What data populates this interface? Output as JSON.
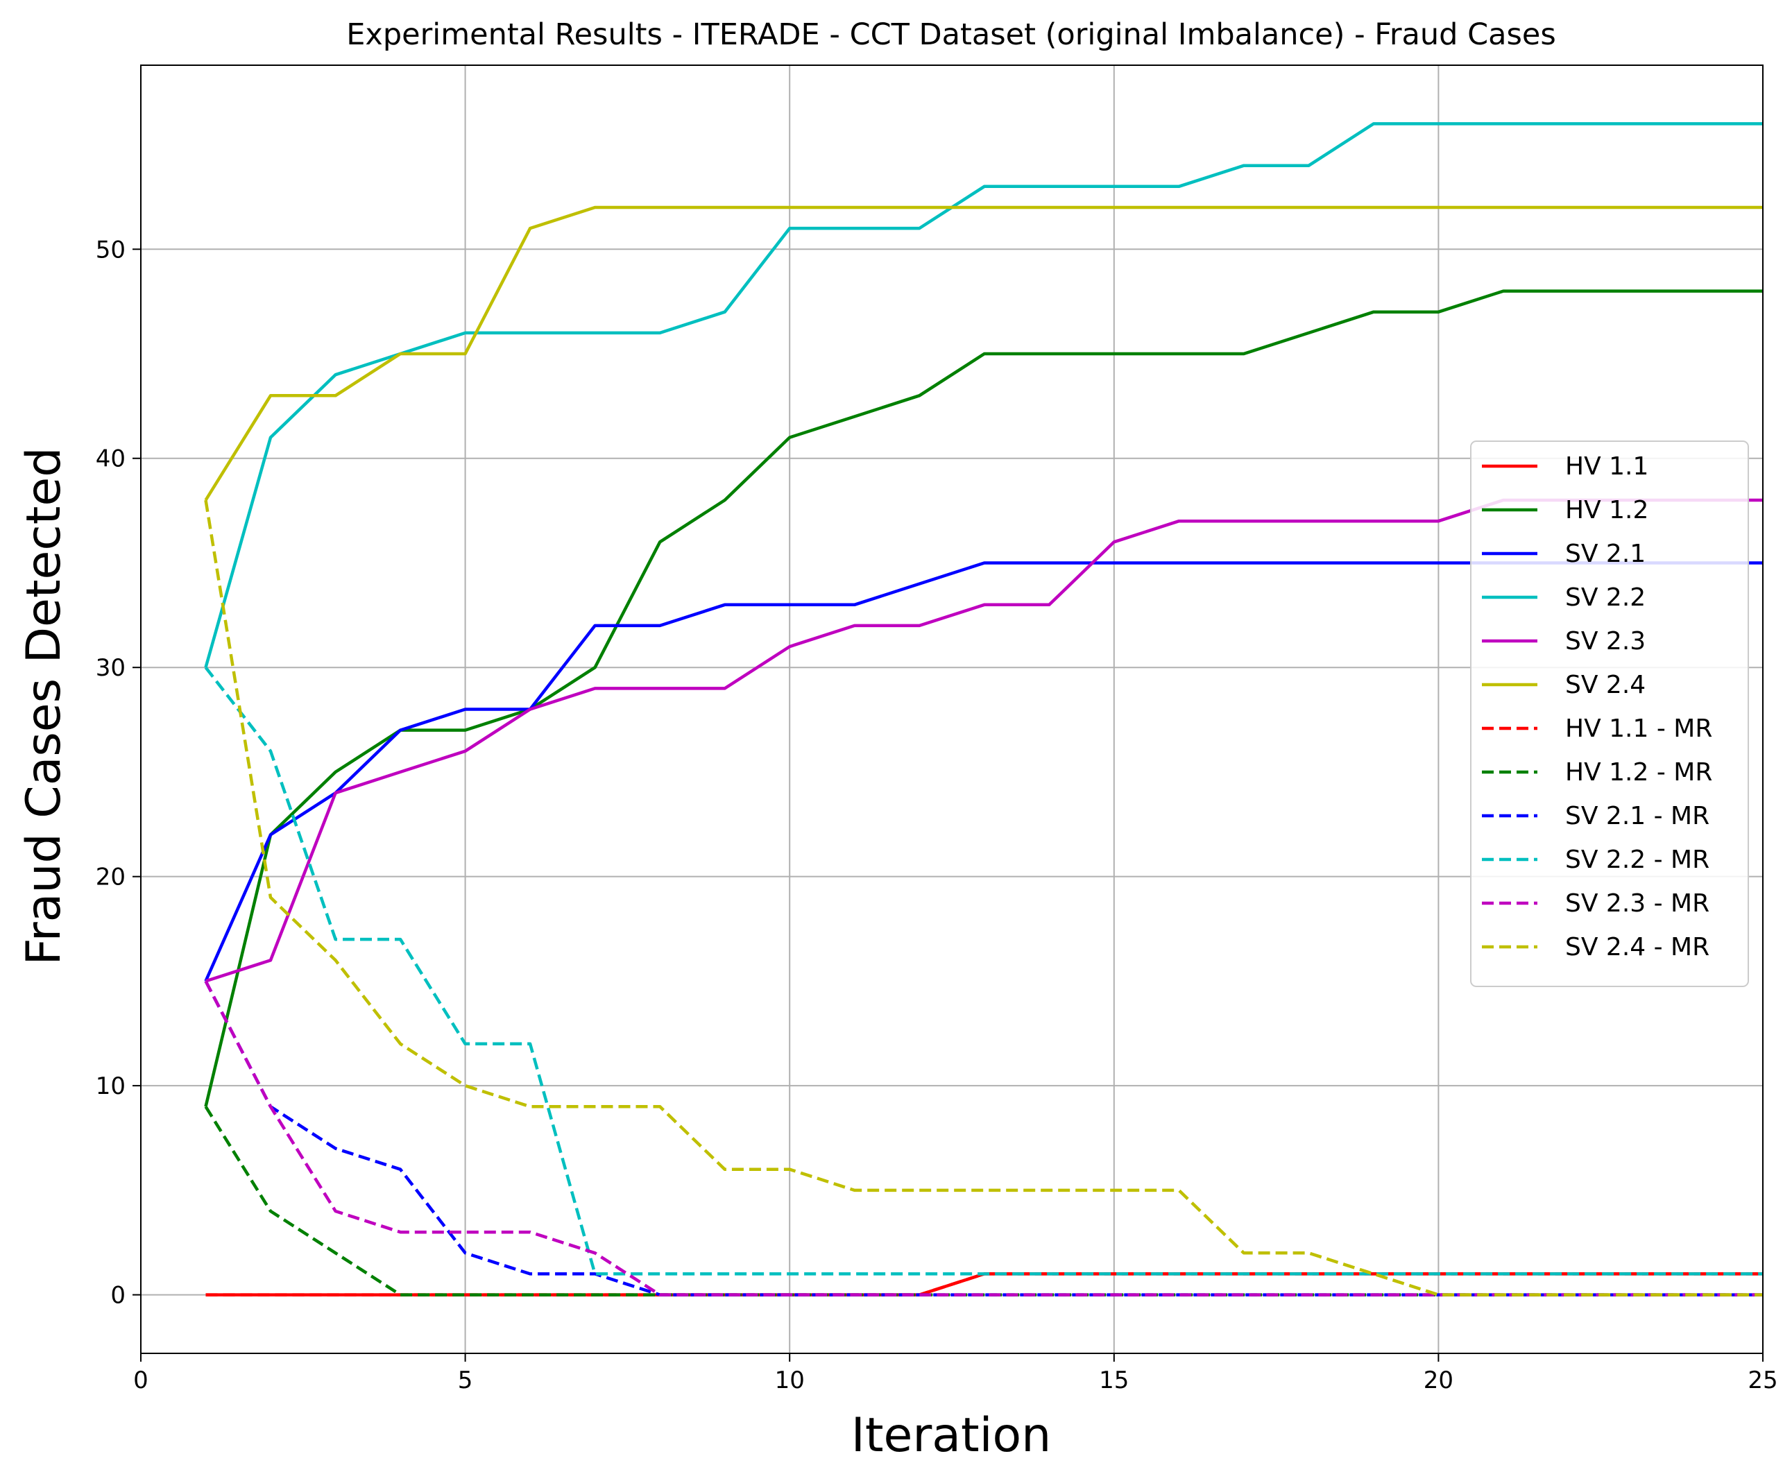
{
  "chart_data": {
    "type": "line",
    "title": "Experimental Results - ITERADE - CCT Dataset (original Imbalance) - Fraud Cases",
    "xlabel": "Iteration",
    "ylabel": "Fraud Cases Detected",
    "xlim": [
      0,
      25
    ],
    "ylim": [
      -2.8,
      58.8
    ],
    "xticks": [
      0,
      5,
      10,
      15,
      20,
      25
    ],
    "yticks": [
      0,
      10,
      20,
      30,
      40,
      50
    ],
    "grid": true,
    "legend_position": "center-right",
    "x": [
      1,
      2,
      3,
      4,
      5,
      6,
      7,
      8,
      9,
      10,
      11,
      12,
      13,
      14,
      15,
      16,
      17,
      18,
      19,
      20,
      21,
      22,
      23,
      24,
      25
    ],
    "series": [
      {
        "name": "HV 1.1",
        "color": "#ff0000",
        "dash": "solid",
        "values": [
          0,
          0,
          0,
          0,
          0,
          0,
          0,
          0,
          0,
          0,
          0,
          0,
          1,
          1,
          1,
          1,
          1,
          1,
          1,
          1,
          1,
          1,
          1,
          1,
          1
        ]
      },
      {
        "name": "HV 1.2",
        "color": "#008000",
        "dash": "solid",
        "values": [
          9,
          22,
          25,
          27,
          27,
          28,
          30,
          36,
          38,
          41,
          42,
          43,
          45,
          45,
          45,
          45,
          45,
          46,
          47,
          47,
          48,
          48,
          48,
          48,
          48
        ]
      },
      {
        "name": "SV 2.1",
        "color": "#0000ff",
        "dash": "solid",
        "values": [
          15,
          22,
          24,
          27,
          28,
          28,
          32,
          32,
          33,
          33,
          33,
          34,
          35,
          35,
          35,
          35,
          35,
          35,
          35,
          35,
          35,
          35,
          35,
          35,
          35
        ]
      },
      {
        "name": "SV 2.2",
        "color": "#00bfbf",
        "dash": "solid",
        "values": [
          30,
          41,
          44,
          45,
          46,
          46,
          46,
          46,
          47,
          51,
          51,
          51,
          53,
          53,
          53,
          53,
          54,
          54,
          56,
          56,
          56,
          56,
          56,
          56,
          56
        ]
      },
      {
        "name": "SV 2.3",
        "color": "#bf00bf",
        "dash": "solid",
        "values": [
          15,
          16,
          24,
          25,
          26,
          28,
          29,
          29,
          29,
          31,
          32,
          32,
          33,
          33,
          36,
          37,
          37,
          37,
          37,
          37,
          38,
          38,
          38,
          38,
          38
        ]
      },
      {
        "name": "SV 2.4",
        "color": "#bfbf00",
        "dash": "solid",
        "values": [
          38,
          43,
          43,
          45,
          45,
          51,
          52,
          52,
          52,
          52,
          52,
          52,
          52,
          52,
          52,
          52,
          52,
          52,
          52,
          52,
          52,
          52,
          52,
          52,
          52
        ]
      },
      {
        "name": "HV 1.1 - MR",
        "color": "#ff0000",
        "dash": "dashed",
        "values": [
          0,
          0,
          0,
          0,
          0,
          0,
          0,
          0,
          0,
          0,
          0,
          0,
          1,
          1,
          1,
          1,
          1,
          1,
          1,
          1,
          1,
          1,
          1,
          1,
          1
        ]
      },
      {
        "name": "HV 1.2 - MR",
        "color": "#008000",
        "dash": "dashed",
        "values": [
          9,
          4,
          2,
          0,
          0,
          0,
          0,
          0,
          0,
          0,
          0,
          0,
          0,
          0,
          0,
          0,
          0,
          0,
          0,
          0,
          0,
          0,
          0,
          0,
          0
        ]
      },
      {
        "name": "SV 2.1 - MR",
        "color": "#0000ff",
        "dash": "dashed",
        "values": [
          15,
          9,
          7,
          6,
          2,
          1,
          1,
          0,
          0,
          0,
          0,
          0,
          0,
          0,
          0,
          0,
          0,
          0,
          0,
          0,
          0,
          0,
          0,
          0,
          0
        ]
      },
      {
        "name": "SV 2.2 - MR",
        "color": "#00bfbf",
        "dash": "dashed",
        "values": [
          30,
          26,
          17,
          17,
          12,
          12,
          1,
          1,
          1,
          1,
          1,
          1,
          1,
          1,
          1,
          1,
          1,
          1,
          1,
          1,
          1,
          1,
          1,
          1,
          1
        ]
      },
      {
        "name": "SV 2.3 - MR",
        "color": "#bf00bf",
        "dash": "dashed",
        "values": [
          15,
          9,
          4,
          3,
          3,
          3,
          2,
          0,
          0,
          0,
          0,
          0,
          0,
          0,
          0,
          0,
          0,
          0,
          0,
          0,
          0,
          0,
          0,
          0,
          0
        ]
      },
      {
        "name": "SV 2.4 - MR",
        "color": "#bfbf00",
        "dash": "dashed",
        "values": [
          38,
          19,
          16,
          12,
          10,
          9,
          9,
          9,
          6,
          6,
          5,
          5,
          5,
          5,
          5,
          5,
          2,
          2,
          1,
          0,
          0,
          0,
          0,
          0,
          0
        ]
      }
    ]
  }
}
